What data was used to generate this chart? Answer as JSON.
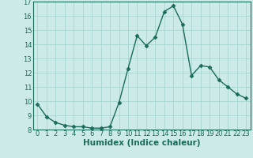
{
  "xlabel": "Humidex (Indice chaleur)",
  "ylabel": "",
  "x": [
    0,
    1,
    2,
    3,
    4,
    5,
    6,
    7,
    8,
    9,
    10,
    11,
    12,
    13,
    14,
    15,
    16,
    17,
    18,
    19,
    20,
    21,
    22,
    23
  ],
  "y": [
    9.8,
    8.9,
    8.5,
    8.3,
    8.2,
    8.2,
    8.1,
    8.1,
    8.2,
    9.9,
    12.3,
    14.6,
    13.9,
    14.5,
    16.3,
    16.7,
    15.4,
    11.8,
    12.5,
    12.4,
    11.5,
    11.0,
    10.5,
    10.2
  ],
  "line_color": "#1a6b5a",
  "marker": "D",
  "marker_size": 2.5,
  "bg_color": "#cceae7",
  "grid_color": "#aad4d0",
  "xlim": [
    -0.5,
    23.5
  ],
  "ylim": [
    8,
    17
  ],
  "yticks": [
    8,
    9,
    10,
    11,
    12,
    13,
    14,
    15,
    16,
    17
  ],
  "xticks": [
    0,
    1,
    2,
    3,
    4,
    5,
    6,
    7,
    8,
    9,
    10,
    11,
    12,
    13,
    14,
    15,
    16,
    17,
    18,
    19,
    20,
    21,
    22,
    23
  ],
  "tick_label_fontsize": 6.0,
  "xlabel_fontsize": 7.5
}
